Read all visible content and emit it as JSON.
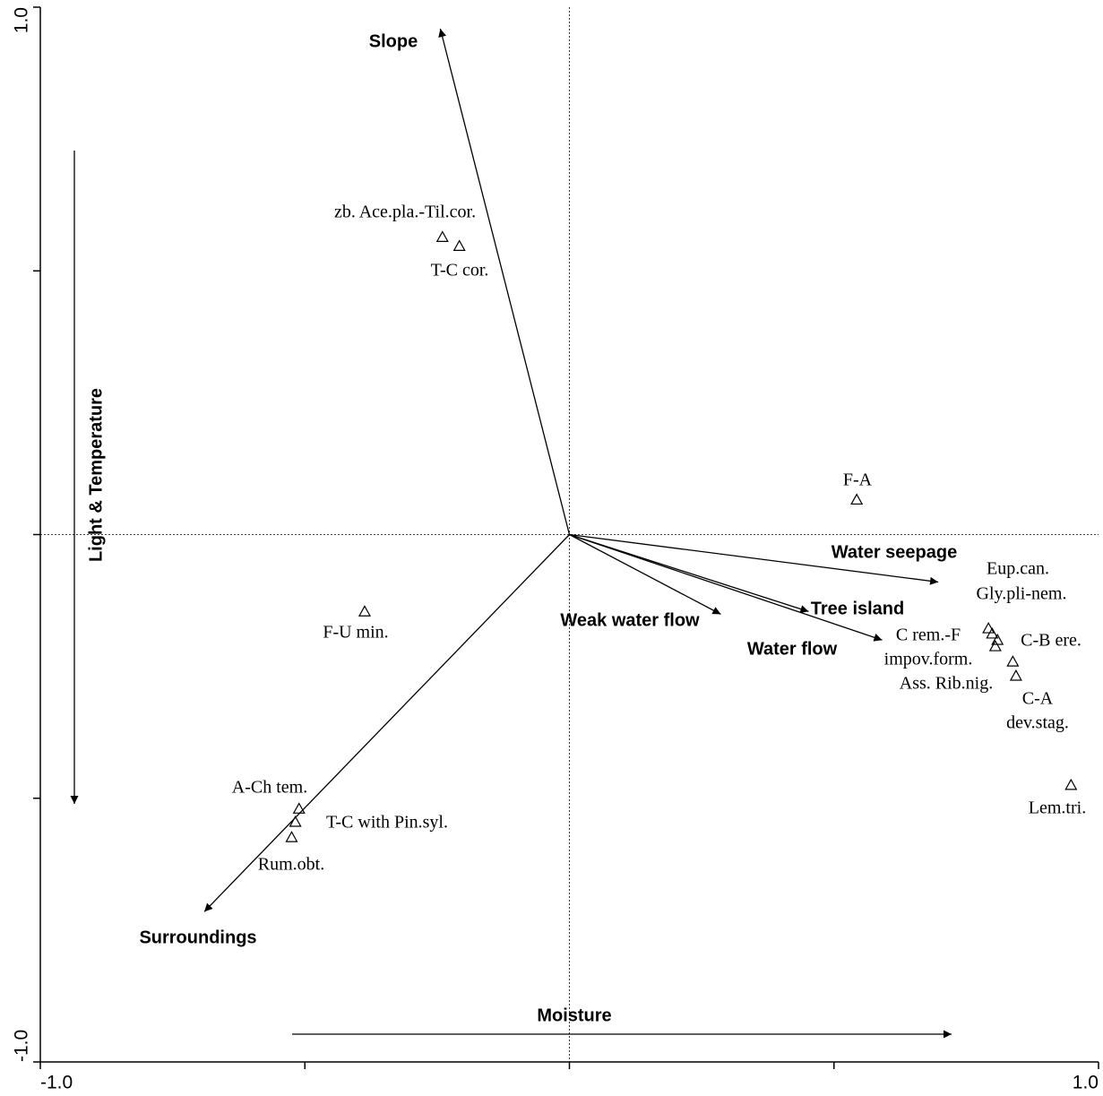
{
  "chart_data": {
    "type": "biplot",
    "xlim": [
      -1,
      1
    ],
    "ylim": [
      -1,
      1
    ],
    "xticks": [
      {
        "value": -1,
        "label": "-1.0"
      },
      {
        "value": -0.5,
        "label": null
      },
      {
        "value": 0,
        "label": null
      },
      {
        "value": 0.5,
        "label": null
      },
      {
        "value": 1,
        "label": "1.0"
      }
    ],
    "yticks": [
      {
        "value": -1,
        "label": "-1.0"
      },
      {
        "value": -0.5,
        "label": null
      },
      {
        "value": 0,
        "label": null
      },
      {
        "value": 0.5,
        "label": null
      },
      {
        "value": 1,
        "label": "1.0"
      }
    ],
    "x_gradient_label": "Moisture",
    "y_gradient_label": "Light & Temperature",
    "arrows": {
      "names": [
        "Slope",
        "Water seepage",
        "Tree island",
        "Water flow",
        "Weak water flow",
        "Surroundings"
      ],
      "x": [
        -0.244,
        0.697,
        0.452,
        0.591,
        0.286,
        -0.69
      ],
      "y": [
        0.959,
        -0.09,
        -0.146,
        -0.2,
        -0.151,
        -0.715
      ]
    },
    "points": {
      "labels": [
        [
          "zb. Ace.pla.-Til.cor."
        ],
        [
          "T-C cor."
        ],
        [
          "F-A"
        ],
        [
          "F-U min."
        ],
        [
          "A-Ch tem."
        ],
        [
          "T-C with Pin.syl."
        ],
        [
          "Rum.obt."
        ],
        [
          "Eup.can."
        ],
        [
          "Gly.pli-nem."
        ],
        [
          "C-B ere."
        ],
        [
          "C rem.-F",
          "impov.form."
        ],
        [
          "Ass. Rib.nig."
        ],
        [
          "C-A",
          "dev.stag."
        ],
        [
          "Lem.tri."
        ]
      ],
      "x": [
        -0.24,
        -0.208,
        0.543,
        -0.387,
        -0.511,
        -0.518,
        -0.525,
        0.792,
        0.799,
        0.809,
        0.805,
        0.838,
        0.844,
        0.948
      ],
      "y": [
        0.564,
        0.547,
        0.066,
        -0.146,
        -0.52,
        -0.545,
        -0.574,
        -0.178,
        -0.188,
        -0.2,
        -0.212,
        -0.241,
        -0.268,
        -0.475
      ]
    }
  }
}
